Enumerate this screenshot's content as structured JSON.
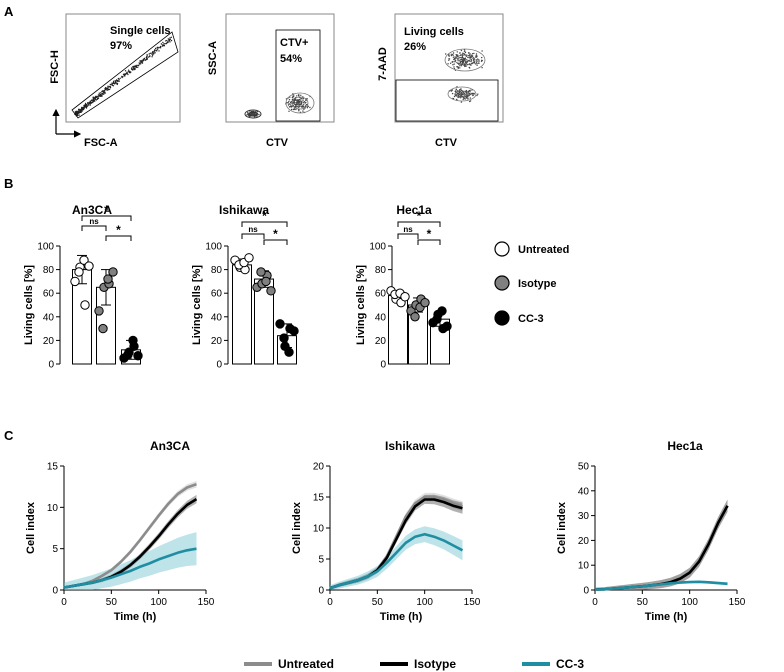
{
  "panel_labels": {
    "a": "A",
    "b": "B",
    "c": "C"
  },
  "flow": {
    "singlets": {
      "y_label": "FSC-H",
      "x_label": "FSC-A",
      "gate_name": "Single cells",
      "gate_pct": "97%"
    },
    "ctv": {
      "y_label": "SSC-A",
      "x_label": "CTV",
      "gate_name": "CTV+",
      "gate_pct": "54%"
    },
    "viability": {
      "y_label": "7-AAD",
      "x_label": "CTV",
      "gate_name": "Living cells",
      "gate_pct": "26%"
    }
  },
  "legend_b": [
    {
      "name": "Untreated",
      "color": "#ffffff"
    },
    {
      "name": "Isotype",
      "color": "#808080"
    },
    {
      "name": "CC-3",
      "color": "#000000"
    }
  ],
  "legend_c": [
    {
      "name": "Untreated",
      "color": "#8c8c8c"
    },
    {
      "name": "Isotype",
      "color": "#000000"
    },
    {
      "name": "CC-3",
      "color": "#1f8ea3"
    }
  ],
  "chart_data": [
    {
      "type": "bar",
      "title": "An3CA",
      "ylabel": "Living cells [%]",
      "ylim": [
        0,
        100
      ],
      "yticks": [
        "0",
        "20",
        "40",
        "60",
        "80",
        "100"
      ],
      "categories": [
        "Untreated",
        "Isotype",
        "CC-3"
      ],
      "values": [
        80,
        65,
        12
      ],
      "errors": [
        12,
        15,
        8
      ],
      "points": [
        [
          70,
          82,
          50,
          78,
          88,
          83
        ],
        [
          45,
          65,
          68,
          30,
          72,
          78
        ],
        [
          5,
          10,
          15,
          8,
          20,
          7
        ]
      ],
      "sig": [
        {
          "from": 0,
          "to": 1,
          "label": "ns"
        },
        {
          "from": 0,
          "to": 2,
          "label": "*"
        },
        {
          "from": 1,
          "to": 2,
          "label": "*"
        }
      ]
    },
    {
      "type": "bar",
      "title": "Ishikawa",
      "ylabel": "Living cells [%]",
      "ylim": [
        0,
        100
      ],
      "yticks": [
        "0",
        "20",
        "40",
        "60",
        "80",
        "100"
      ],
      "categories": [
        "Untreated",
        "Isotype",
        "CC-3"
      ],
      "values": [
        84,
        72,
        24
      ],
      "errors": [
        5,
        7,
        10
      ],
      "points": [
        [
          88,
          82,
          80,
          84,
          86,
          90
        ],
        [
          65,
          68,
          75,
          78,
          70,
          62
        ],
        [
          34,
          15,
          30,
          22,
          10,
          28
        ]
      ],
      "sig": [
        {
          "from": 0,
          "to": 1,
          "label": "ns"
        },
        {
          "from": 0,
          "to": 2,
          "label": "*"
        },
        {
          "from": 1,
          "to": 2,
          "label": "*"
        }
      ]
    },
    {
      "type": "bar",
      "title": "Hec1a",
      "ylabel": "Living cells [%]",
      "ylim": [
        0,
        100
      ],
      "yticks": [
        "0",
        "20",
        "40",
        "60",
        "80",
        "100"
      ],
      "categories": [
        "Untreated",
        "Isotype",
        "CC-3"
      ],
      "values": [
        58,
        50,
        38
      ],
      "errors": [
        4,
        6,
        6
      ],
      "points": [
        [
          62,
          55,
          52,
          59,
          60,
          57
        ],
        [
          45,
          50,
          55,
          40,
          48,
          52
        ],
        [
          35,
          42,
          30,
          38,
          45,
          32
        ]
      ],
      "sig": [
        {
          "from": 0,
          "to": 1,
          "label": "ns"
        },
        {
          "from": 0,
          "to": 2,
          "label": "*"
        },
        {
          "from": 1,
          "to": 2,
          "label": "*"
        }
      ]
    },
    {
      "type": "line",
      "title": "An3CA",
      "xlabel": "Time (h)",
      "ylabel": "Cell index",
      "xlim": [
        0,
        150
      ],
      "ylim": [
        0,
        15
      ],
      "xticks": [
        "0",
        "50",
        "100",
        "150"
      ],
      "yticks": [
        "0",
        "5",
        "10",
        "15"
      ],
      "x": [
        0,
        10,
        20,
        30,
        40,
        50,
        60,
        70,
        80,
        90,
        100,
        110,
        120,
        130,
        140
      ],
      "series": [
        {
          "name": "Untreated",
          "values": [
            0.3,
            0.5,
            0.7,
            1.1,
            1.7,
            2.4,
            3.4,
            4.6,
            6.0,
            7.5,
            9.0,
            10.4,
            11.6,
            12.4,
            12.8
          ],
          "band": 0.4
        },
        {
          "name": "Isotype",
          "values": [
            0.3,
            0.5,
            0.7,
            0.9,
            1.2,
            1.6,
            2.2,
            3.0,
            4.0,
            5.2,
            6.5,
            7.9,
            9.2,
            10.3,
            11.0
          ],
          "band": 0.5
        },
        {
          "name": "CC-3",
          "values": [
            0.3,
            0.5,
            0.7,
            0.9,
            1.2,
            1.5,
            1.9,
            2.3,
            2.8,
            3.2,
            3.7,
            4.1,
            4.5,
            4.8,
            5.0
          ],
          "band": 2.0
        }
      ]
    },
    {
      "type": "line",
      "title": "Ishikawa",
      "xlabel": "Time (h)",
      "ylabel": "Cell index",
      "xlim": [
        0,
        150
      ],
      "ylim": [
        0,
        20
      ],
      "xticks": [
        "0",
        "50",
        "100",
        "150"
      ],
      "yticks": [
        "0",
        "5",
        "10",
        "15",
        "20"
      ],
      "x": [
        0,
        10,
        20,
        30,
        40,
        50,
        60,
        70,
        80,
        90,
        100,
        110,
        120,
        130,
        140
      ],
      "series": [
        {
          "name": "Untreated",
          "values": [
            0.3,
            0.8,
            1.2,
            1.6,
            2.2,
            3.2,
            5.4,
            8.6,
            11.8,
            14.0,
            15.0,
            15.0,
            14.6,
            14.0,
            13.5
          ],
          "band": 0.8
        },
        {
          "name": "Isotype",
          "values": [
            0.3,
            0.8,
            1.2,
            1.6,
            2.2,
            3.2,
            5.2,
            8.2,
            11.2,
            13.5,
            14.6,
            14.6,
            14.2,
            13.6,
            13.2
          ],
          "band": 0.9
        },
        {
          "name": "CC-3",
          "values": [
            0.3,
            0.8,
            1.2,
            1.6,
            2.2,
            3.0,
            4.4,
            6.0,
            7.6,
            8.6,
            9.0,
            8.6,
            8.0,
            7.2,
            6.4
          ],
          "band": 1.6
        }
      ]
    },
    {
      "type": "line",
      "title": "Hec1a",
      "xlabel": "Time (h)",
      "ylabel": "Cell index",
      "xlim": [
        0,
        150
      ],
      "ylim": [
        0,
        50
      ],
      "xticks": [
        "0",
        "50",
        "100",
        "150"
      ],
      "yticks": [
        "0",
        "10",
        "20",
        "30",
        "40",
        "50"
      ],
      "x": [
        0,
        10,
        20,
        30,
        40,
        50,
        60,
        70,
        80,
        90,
        100,
        110,
        120,
        130,
        140
      ],
      "series": [
        {
          "name": "Untreated",
          "values": [
            0.2,
            0.3,
            0.6,
            0.9,
            1.2,
            1.5,
            1.9,
            2.4,
            3.2,
            4.6,
            7.0,
            11.5,
            18.5,
            27.0,
            34.0
          ],
          "band": 2.5
        },
        {
          "name": "Isotype",
          "values": [
            0.2,
            0.3,
            0.6,
            0.9,
            1.2,
            1.5,
            1.9,
            2.4,
            3.2,
            4.6,
            7.0,
            11.5,
            18.5,
            27.0,
            34.0
          ],
          "band": 2.5
        },
        {
          "name": "CC-3",
          "values": [
            0.2,
            0.3,
            0.6,
            0.9,
            1.2,
            1.5,
            1.9,
            2.3,
            2.7,
            3.0,
            3.2,
            3.3,
            3.1,
            2.8,
            2.5
          ],
          "band": 0.6
        }
      ]
    }
  ]
}
